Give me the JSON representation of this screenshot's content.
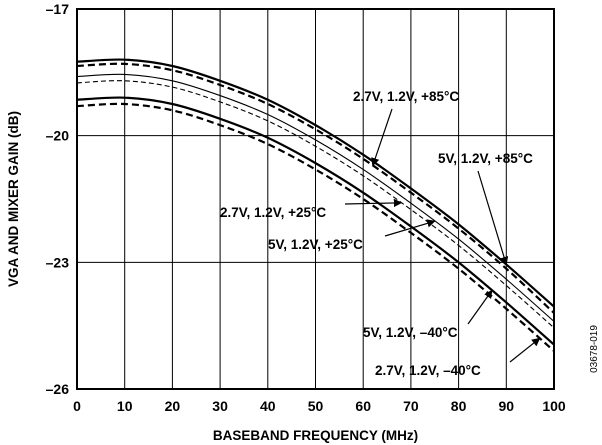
{
  "figure_id": "03678-019",
  "chart_data": {
    "type": "line",
    "title": "",
    "xlabel": "BASEBAND FREQUENCY (MHz)",
    "ylabel": "VGA AND MIXER GAIN (dB)",
    "xlim": [
      0,
      100
    ],
    "ylim": [
      -26,
      -17
    ],
    "x_ticks": [
      0,
      10,
      20,
      30,
      40,
      50,
      60,
      70,
      80,
      90,
      100
    ],
    "y_ticks": [
      -17,
      -20,
      -23,
      -26
    ],
    "x_tick_labels": [
      "0",
      "10",
      "20",
      "30",
      "40",
      "50",
      "60",
      "70",
      "80",
      "90",
      "100"
    ],
    "y_tick_labels": [
      "–17",
      "–20",
      "–23",
      "–26"
    ],
    "grid": true,
    "series": [
      {
        "name": "5V, 1.2V, +85°C",
        "style": "solid",
        "width": 2.2,
        "x": [
          0,
          10,
          20,
          30,
          40,
          50,
          60,
          70,
          80,
          90,
          100
        ],
        "y": [
          -18.25,
          -18.2,
          -18.35,
          -18.7,
          -19.15,
          -19.75,
          -20.45,
          -21.25,
          -22.1,
          -23.05,
          -24.05
        ]
      },
      {
        "name": "2.7V, 1.2V, +85°C",
        "style": "dashed",
        "width": 2.2,
        "x": [
          0,
          10,
          20,
          30,
          40,
          50,
          60,
          70,
          80,
          90,
          100
        ],
        "y": [
          -18.35,
          -18.3,
          -18.45,
          -18.8,
          -19.25,
          -19.85,
          -20.55,
          -21.35,
          -22.2,
          -23.15,
          -24.2
        ]
      },
      {
        "name": "5V, 1.2V, +25°C",
        "style": "solid",
        "width": 1.1,
        "x": [
          0,
          10,
          20,
          30,
          40,
          50,
          60,
          70,
          80,
          90,
          100
        ],
        "y": [
          -18.6,
          -18.55,
          -18.7,
          -19.05,
          -19.5,
          -20.1,
          -20.8,
          -21.6,
          -22.45,
          -23.4,
          -24.4
        ]
      },
      {
        "name": "2.7V, 1.2V, +25°C",
        "style": "dashed",
        "width": 1.1,
        "x": [
          0,
          10,
          20,
          30,
          40,
          50,
          60,
          70,
          80,
          90,
          100
        ],
        "y": [
          -18.75,
          -18.7,
          -18.85,
          -19.2,
          -19.65,
          -20.25,
          -20.95,
          -21.75,
          -22.6,
          -23.55,
          -24.55
        ]
      },
      {
        "name": "5V, 1.2V, –40°C",
        "style": "solid",
        "width": 2.2,
        "x": [
          0,
          10,
          20,
          30,
          40,
          50,
          60,
          70,
          80,
          90,
          100
        ],
        "y": [
          -19.15,
          -19.1,
          -19.25,
          -19.6,
          -20.05,
          -20.65,
          -21.35,
          -22.15,
          -23.0,
          -23.95,
          -24.95
        ]
      },
      {
        "name": "2.7V, 1.2V, –40°C",
        "style": "dashed",
        "width": 2.2,
        "x": [
          0,
          10,
          20,
          30,
          40,
          50,
          60,
          70,
          80,
          90,
          100
        ],
        "y": [
          -19.3,
          -19.25,
          -19.4,
          -19.75,
          -20.2,
          -20.8,
          -21.5,
          -22.3,
          -23.15,
          -24.1,
          -25.1
        ]
      }
    ],
    "annotations": [
      {
        "text": "2.7V, 1.2V, +85°C",
        "series": "2.7V, 1.2V, +85°C",
        "arrow_to_x": 62,
        "dir": "up-left"
      },
      {
        "text": "5V, 1.2V, +85°C",
        "series": "5V, 1.2V, +85°C",
        "arrow_to_x": 90,
        "dir": "up-left"
      },
      {
        "text": "2.7V, 1.2V, +25°C",
        "series": "2.7V, 1.2V, +25°C",
        "arrow_to_x": 68,
        "dir": "right"
      },
      {
        "text": "5V, 1.2V, +25°C",
        "series": "5V, 1.2V, +25°C",
        "arrow_to_x": 75,
        "dir": "right"
      },
      {
        "text": "5V, 1.2V, –40°C",
        "series": "5V, 1.2V, –40°C",
        "arrow_to_x": 87,
        "dir": "right"
      },
      {
        "text": "2.7V, 1.2V, –40°C",
        "series": "2.7V, 1.2V, –40°C",
        "arrow_to_x": 97,
        "dir": "right"
      }
    ]
  }
}
